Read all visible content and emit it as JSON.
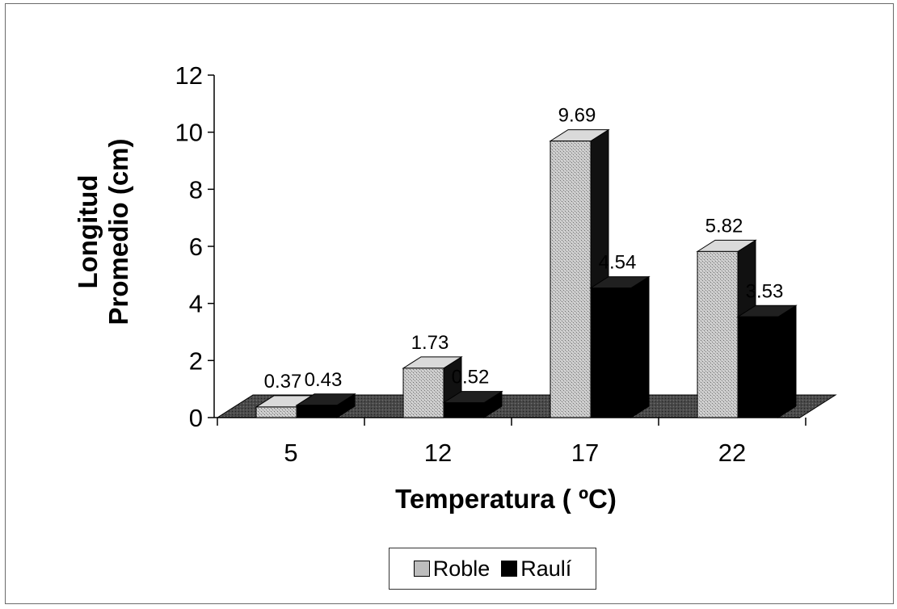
{
  "chart_data": {
    "type": "bar",
    "style": "3d-clustered-column",
    "title": "",
    "xlabel": "Temperatura ( ºC)",
    "ylabel_lines": [
      "Longitud",
      "Promedio (cm)"
    ],
    "categories": [
      "5",
      "12",
      "17",
      "22"
    ],
    "series": [
      {
        "name": "Roble",
        "values": [
          0.37,
          1.73,
          9.69,
          5.82
        ],
        "labels": [
          "0.37",
          "1.73",
          "9.69",
          "5.82"
        ],
        "color": "#bdbdbd",
        "pattern": "stipple"
      },
      {
        "name": "Raulí",
        "values": [
          0.43,
          0.52,
          4.54,
          3.53
        ],
        "labels": [
          "0.43",
          "0.52",
          "4.54",
          "3.53"
        ],
        "color": "#000000",
        "pattern": "solid"
      }
    ],
    "ylim": [
      0,
      12
    ],
    "yticks": [
      0,
      2,
      4,
      6,
      8,
      10,
      12
    ],
    "ytick_labels": [
      "0",
      "2",
      "4",
      "6",
      "8",
      "10",
      "12"
    ],
    "grid": false,
    "legend_position": "bottom"
  }
}
